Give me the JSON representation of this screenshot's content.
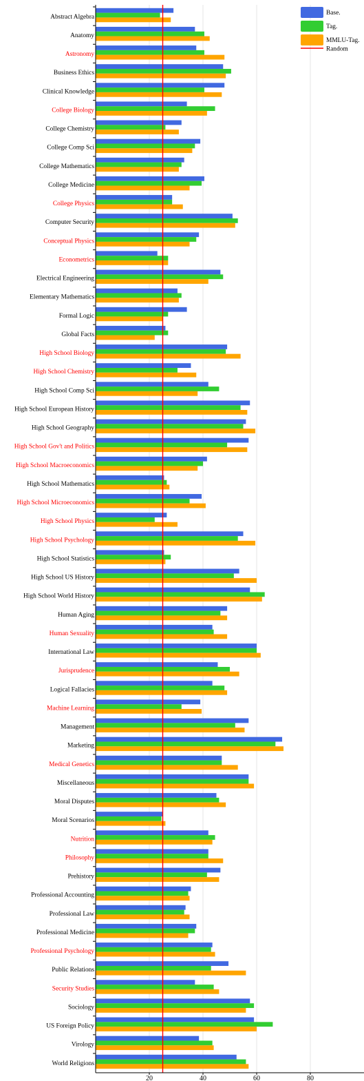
{
  "chart_data": {
    "type": "bar",
    "orientation": "horizontal",
    "categories": [
      "Abstract Algebra",
      "Anatomy",
      "Astronomy",
      "Business Ethics",
      "Clinical Knowledge",
      "College Biology",
      "College Chemistry",
      "College Comp Sci",
      "College Mathematics",
      "College Medicine",
      "College Physics",
      "Computer Security",
      "Conceptual Physics",
      "Econometrics",
      "Electrical Engineering",
      "Elementary Mathematics",
      "Formal Logic",
      "Global Facts",
      "High School Biology",
      "High School Chemistry",
      "High School Comp Sci",
      "High School European History",
      "High School Geography",
      "High School Gov't and Politics",
      "High School Macroeconomics",
      "High School Mathematics",
      "High School Microeconomics",
      "High School Physics",
      "High School Psychology",
      "High School Statistics",
      "High School US History",
      "High School World History",
      "Human Aging",
      "Human Sexuality",
      "International Law",
      "Jurisprudence",
      "Logical Fallacies",
      "Machine Learning",
      "Management",
      "Marketing",
      "Medical Genetics",
      "Miscellaneous",
      "Moral Disputes",
      "Moral Scenarios",
      "Nutrition",
      "Philosophy",
      "Prehistory",
      "Professional Accounting",
      "Professional Law",
      "Professional Medicine",
      "Professional Psychology",
      "Public Relations",
      "Security Studies",
      "Sociology",
      "US Foreign Policy",
      "Virology",
      "World Religions"
    ],
    "highlighted_categories": [
      "Astronomy",
      "College Biology",
      "College Physics",
      "Conceptual Physics",
      "Econometrics",
      "High School Biology",
      "High School Chemistry",
      "High School Gov't and Politics",
      "High School Macroeconomics",
      "High School Microeconomics",
      "High School Physics",
      "High School Psychology",
      "Human Sexuality",
      "Jurisprudence",
      "Machine Learning",
      "Medical Genetics",
      "Nutrition",
      "Philosophy",
      "Professional Psychology",
      "Security Studies"
    ],
    "series": [
      {
        "name": "Base.",
        "color": "#4169e1",
        "values": [
          29,
          37,
          37.5,
          47.5,
          48,
          34,
          32,
          39,
          33,
          40.5,
          28.5,
          51,
          38.5,
          23,
          46.5,
          30.5,
          34,
          26,
          49,
          35.5,
          42,
          57.5,
          56,
          57,
          41.5,
          25.5,
          39.5,
          26.5,
          55,
          25.5,
          53.5,
          57.5,
          49,
          43.5,
          60,
          45.5,
          43.5,
          39,
          57,
          69.5,
          47,
          57,
          45,
          25,
          42,
          42,
          46.5,
          35.5,
          33.5,
          37.5,
          43.5,
          49.5,
          37,
          57.5,
          59,
          38.5,
          52.5
        ]
      },
      {
        "name": "Tag.",
        "color": "#32cd32",
        "values": [
          24,
          40.5,
          40.5,
          50.5,
          40.5,
          44.5,
          26,
          37,
          32,
          39.5,
          28.5,
          53,
          37.5,
          27,
          47.5,
          32,
          27,
          27,
          48.5,
          30.5,
          46,
          54,
          55,
          49,
          40,
          26.5,
          35,
          22,
          53,
          28,
          51.5,
          63,
          46.5,
          44,
          60,
          50,
          48,
          32,
          52,
          67,
          47,
          57,
          46,
          24.5,
          44.5,
          42,
          41.5,
          34.5,
          33,
          37,
          43,
          43,
          44,
          59,
          66,
          43.5,
          56
        ]
      },
      {
        "name": "MMLU-Tag.",
        "color": "#ffa500",
        "values": [
          28,
          42.5,
          48,
          48.5,
          47,
          41.5,
          31,
          36,
          31,
          35,
          32.5,
          52,
          35,
          27,
          42,
          31,
          25,
          22,
          54,
          37.5,
          38,
          56.5,
          59.5,
          56.5,
          38,
          27.5,
          41,
          30.5,
          59.5,
          26,
          60,
          62,
          49,
          49,
          61.5,
          53.5,
          49,
          39.5,
          55.5,
          70,
          53,
          59,
          48.5,
          26,
          43.5,
          47.5,
          46,
          35,
          35,
          34.5,
          44.5,
          56,
          46,
          56,
          60,
          44,
          57
        ]
      }
    ],
    "reference_line": {
      "name": "Random",
      "value": 25,
      "color": "#ff0000"
    },
    "x_ticks": [
      20,
      40,
      60,
      80
    ],
    "xlim": [
      0,
      100
    ],
    "xlabel": "",
    "ylabel": "",
    "title": "",
    "grid": true,
    "legend_position": "top-right",
    "label_colors": {
      "normal": "#000000",
      "highlighted": "#ff0000"
    }
  }
}
